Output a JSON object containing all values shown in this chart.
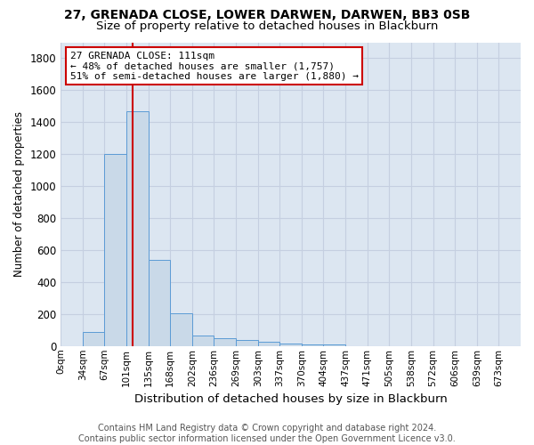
{
  "title": "27, GRENADA CLOSE, LOWER DARWEN, DARWEN, BB3 0SB",
  "subtitle": "Size of property relative to detached houses in Blackburn",
  "xlabel": "Distribution of detached houses by size in Blackburn",
  "ylabel": "Number of detached properties",
  "bar_color": "#c9d9e8",
  "bar_edge_color": "#5b9bd5",
  "grid_color": "#c5cfe0",
  "background_color": "#dce6f1",
  "categories": [
    "0sqm",
    "34sqm",
    "67sqm",
    "101sqm",
    "135sqm",
    "168sqm",
    "202sqm",
    "236sqm",
    "269sqm",
    "303sqm",
    "337sqm",
    "370sqm",
    "404sqm",
    "437sqm",
    "471sqm",
    "505sqm",
    "538sqm",
    "572sqm",
    "606sqm",
    "639sqm",
    "673sqm"
  ],
  "bar_heights": [
    0,
    90,
    1200,
    1470,
    540,
    205,
    65,
    48,
    35,
    28,
    15,
    10,
    8,
    0,
    0,
    0,
    0,
    0,
    0,
    0,
    0
  ],
  "vline_bin": 3,
  "vline_color": "#cc0000",
  "annotation_text": "27 GRENADA CLOSE: 111sqm\n← 48% of detached houses are smaller (1,757)\n51% of semi-detached houses are larger (1,880) →",
  "annotation_box_color": "#ffffff",
  "annotation_box_edge": "#cc0000",
  "ylim": [
    0,
    1900
  ],
  "yticks": [
    0,
    200,
    400,
    600,
    800,
    1000,
    1200,
    1400,
    1600,
    1800
  ],
  "footnote": "Contains HM Land Registry data © Crown copyright and database right 2024.\nContains public sector information licensed under the Open Government Licence v3.0.",
  "title_fontsize": 10,
  "subtitle_fontsize": 9.5,
  "xlabel_fontsize": 9.5,
  "ylabel_fontsize": 8.5,
  "tick_fontsize": 7.5,
  "annot_fontsize": 8,
  "footnote_fontsize": 7
}
